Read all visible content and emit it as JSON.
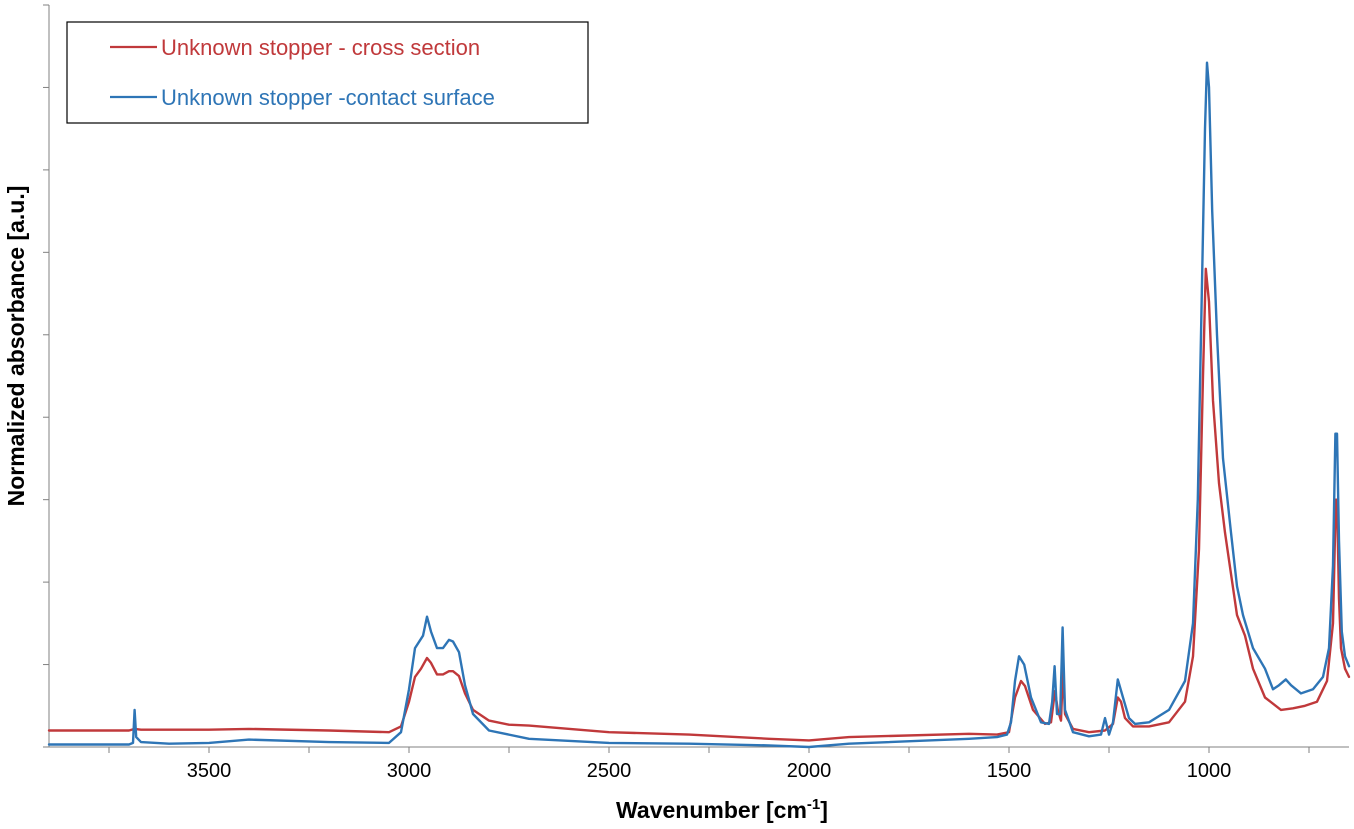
{
  "chart_data": {
    "type": "line",
    "xlabel": "Wavenumber [cm",
    "xlabel_sup": "-1",
    "xlabel_end": "]",
    "ylabel": "Normalized absorbance [a.u.]",
    "xlim": [
      3900,
      650
    ],
    "ylim": [
      0,
      9
    ],
    "x_reversed": true,
    "xticks": [
      3500,
      3000,
      2500,
      2000,
      1500,
      1000
    ],
    "yticks_count": 9,
    "grid": false,
    "legend_position": "top-left",
    "series": [
      {
        "name": "Unknown stopper - cross section",
        "color": "#c0393b",
        "points": [
          [
            3900,
            0.2
          ],
          [
            3700,
            0.2
          ],
          [
            3686,
            0.22
          ],
          [
            3670,
            0.21
          ],
          [
            3500,
            0.21
          ],
          [
            3400,
            0.22
          ],
          [
            3200,
            0.2
          ],
          [
            3050,
            0.18
          ],
          [
            3020,
            0.25
          ],
          [
            3000,
            0.55
          ],
          [
            2985,
            0.85
          ],
          [
            2970,
            0.95
          ],
          [
            2955,
            1.08
          ],
          [
            2945,
            1.02
          ],
          [
            2930,
            0.88
          ],
          [
            2915,
            0.88
          ],
          [
            2900,
            0.92
          ],
          [
            2890,
            0.92
          ],
          [
            2875,
            0.86
          ],
          [
            2860,
            0.65
          ],
          [
            2840,
            0.45
          ],
          [
            2800,
            0.32
          ],
          [
            2750,
            0.27
          ],
          [
            2700,
            0.26
          ],
          [
            2500,
            0.18
          ],
          [
            2300,
            0.15
          ],
          [
            2100,
            0.1
          ],
          [
            2000,
            0.08
          ],
          [
            1900,
            0.12
          ],
          [
            1600,
            0.16
          ],
          [
            1530,
            0.15
          ],
          [
            1500,
            0.18
          ],
          [
            1485,
            0.6
          ],
          [
            1470,
            0.8
          ],
          [
            1460,
            0.74
          ],
          [
            1440,
            0.45
          ],
          [
            1410,
            0.28
          ],
          [
            1395,
            0.3
          ],
          [
            1385,
            0.68
          ],
          [
            1378,
            0.45
          ],
          [
            1370,
            0.32
          ],
          [
            1365,
            0.95
          ],
          [
            1360,
            0.4
          ],
          [
            1340,
            0.22
          ],
          [
            1300,
            0.18
          ],
          [
            1260,
            0.2
          ],
          [
            1240,
            0.28
          ],
          [
            1228,
            0.6
          ],
          [
            1220,
            0.55
          ],
          [
            1210,
            0.35
          ],
          [
            1190,
            0.25
          ],
          [
            1150,
            0.25
          ],
          [
            1100,
            0.3
          ],
          [
            1060,
            0.55
          ],
          [
            1040,
            1.1
          ],
          [
            1025,
            2.4
          ],
          [
            1015,
            4.5
          ],
          [
            1008,
            5.8
          ],
          [
            1000,
            5.4
          ],
          [
            990,
            4.2
          ],
          [
            975,
            3.2
          ],
          [
            960,
            2.6
          ],
          [
            945,
            2.1
          ],
          [
            930,
            1.6
          ],
          [
            910,
            1.35
          ],
          [
            890,
            0.95
          ],
          [
            860,
            0.6
          ],
          [
            820,
            0.45
          ],
          [
            790,
            0.47
          ],
          [
            760,
            0.5
          ],
          [
            730,
            0.55
          ],
          [
            705,
            0.8
          ],
          [
            690,
            1.5
          ],
          [
            683,
            3.0
          ],
          [
            680,
            3.0
          ],
          [
            675,
            1.8
          ],
          [
            670,
            1.2
          ],
          [
            660,
            0.95
          ],
          [
            650,
            0.85
          ]
        ]
      },
      {
        "name": "Unknown stopper -contact surface",
        "color": "#2e75b6",
        "points": [
          [
            3900,
            0.03
          ],
          [
            3700,
            0.03
          ],
          [
            3690,
            0.05
          ],
          [
            3686,
            0.45
          ],
          [
            3682,
            0.12
          ],
          [
            3670,
            0.06
          ],
          [
            3600,
            0.04
          ],
          [
            3500,
            0.05
          ],
          [
            3400,
            0.09
          ],
          [
            3200,
            0.06
          ],
          [
            3050,
            0.05
          ],
          [
            3020,
            0.18
          ],
          [
            3000,
            0.7
          ],
          [
            2985,
            1.2
          ],
          [
            2965,
            1.35
          ],
          [
            2955,
            1.58
          ],
          [
            2945,
            1.4
          ],
          [
            2930,
            1.2
          ],
          [
            2915,
            1.2
          ],
          [
            2900,
            1.3
          ],
          [
            2890,
            1.28
          ],
          [
            2875,
            1.15
          ],
          [
            2860,
            0.75
          ],
          [
            2840,
            0.4
          ],
          [
            2800,
            0.2
          ],
          [
            2700,
            0.1
          ],
          [
            2500,
            0.05
          ],
          [
            2300,
            0.04
          ],
          [
            2100,
            0.02
          ],
          [
            2000,
            0.0
          ],
          [
            1900,
            0.04
          ],
          [
            1600,
            0.1
          ],
          [
            1530,
            0.12
          ],
          [
            1505,
            0.15
          ],
          [
            1495,
            0.3
          ],
          [
            1485,
            0.8
          ],
          [
            1475,
            1.1
          ],
          [
            1462,
            1.0
          ],
          [
            1445,
            0.6
          ],
          [
            1420,
            0.3
          ],
          [
            1400,
            0.28
          ],
          [
            1392,
            0.55
          ],
          [
            1386,
            0.98
          ],
          [
            1380,
            0.4
          ],
          [
            1372,
            0.4
          ],
          [
            1366,
            1.45
          ],
          [
            1360,
            0.45
          ],
          [
            1340,
            0.18
          ],
          [
            1300,
            0.13
          ],
          [
            1270,
            0.15
          ],
          [
            1260,
            0.35
          ],
          [
            1250,
            0.15
          ],
          [
            1240,
            0.3
          ],
          [
            1228,
            0.82
          ],
          [
            1215,
            0.6
          ],
          [
            1200,
            0.35
          ],
          [
            1185,
            0.28
          ],
          [
            1150,
            0.3
          ],
          [
            1100,
            0.45
          ],
          [
            1060,
            0.8
          ],
          [
            1040,
            1.5
          ],
          [
            1028,
            3.0
          ],
          [
            1018,
            5.5
          ],
          [
            1010,
            7.5
          ],
          [
            1005,
            8.3
          ],
          [
            1000,
            8.0
          ],
          [
            992,
            6.5
          ],
          [
            980,
            5.0
          ],
          [
            965,
            3.5
          ],
          [
            945,
            2.6
          ],
          [
            930,
            1.95
          ],
          [
            915,
            1.6
          ],
          [
            890,
            1.2
          ],
          [
            860,
            0.95
          ],
          [
            840,
            0.7
          ],
          [
            825,
            0.75
          ],
          [
            808,
            0.82
          ],
          [
            795,
            0.75
          ],
          [
            770,
            0.65
          ],
          [
            740,
            0.7
          ],
          [
            715,
            0.85
          ],
          [
            700,
            1.2
          ],
          [
            690,
            2.2
          ],
          [
            684,
            3.8
          ],
          [
            680,
            3.8
          ],
          [
            675,
            2.5
          ],
          [
            668,
            1.4
          ],
          [
            660,
            1.1
          ],
          [
            650,
            0.98
          ]
        ]
      }
    ]
  }
}
